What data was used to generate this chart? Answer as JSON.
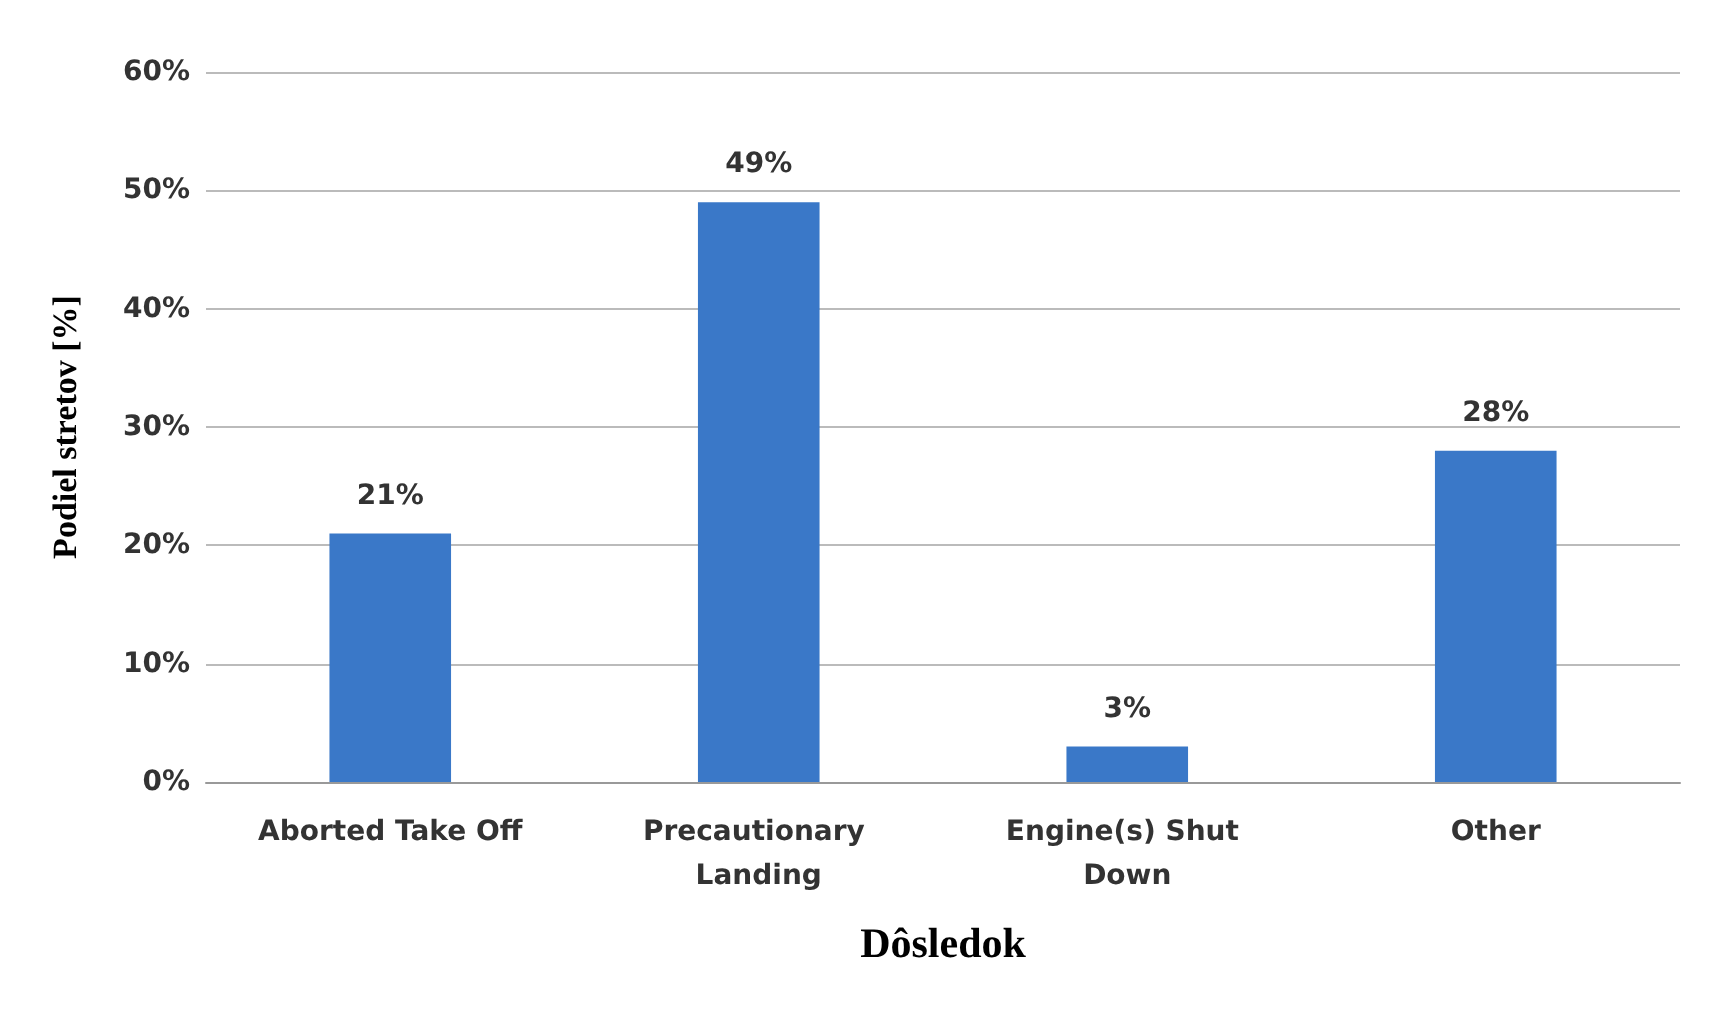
{
  "chart_data": {
    "type": "bar",
    "xlabel": "Dôsledok",
    "ylabel": "Podiel stretov [%]",
    "categories": [
      "Aborted Take Off",
      "Precautionary Landing",
      "Engine(s) Shut Down",
      "Other"
    ],
    "values": [
      21,
      49,
      3,
      28
    ],
    "value_labels": [
      "21%",
      "49%",
      "3%",
      "28%"
    ],
    "color": "#3a78c8",
    "ylim": [
      0,
      60
    ],
    "yticks": [
      {
        "value": 0,
        "label": "0%"
      },
      {
        "value": 10,
        "label": "10%"
      },
      {
        "value": 20,
        "label": "20%"
      },
      {
        "value": 30,
        "label": "30%"
      },
      {
        "value": 40,
        "label": "40%"
      },
      {
        "value": 50,
        "label": "50%"
      },
      {
        "value": 60,
        "label": "60%"
      }
    ],
    "grid": true
  }
}
